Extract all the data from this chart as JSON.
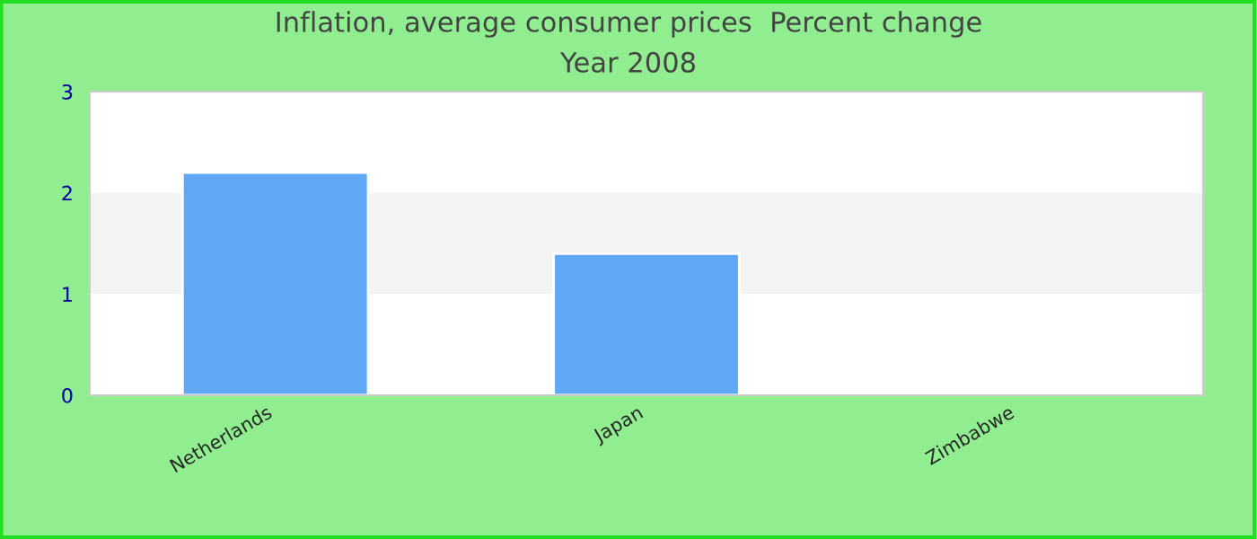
{
  "chart_data": {
    "type": "bar",
    "title": "Inflation, average consumer prices  Percent change",
    "subtitle": "Year 2008",
    "categories": [
      "Netherlands",
      "Japan",
      "Zimbabwe"
    ],
    "values": [
      2.2,
      1.4,
      null
    ],
    "color": "#60a8f5",
    "ylim": [
      0,
      3
    ],
    "yticks": [
      0,
      1,
      2,
      3
    ],
    "bands": [
      {
        "axis": "y",
        "from": 1,
        "to": 2,
        "color": "#f3f3f3"
      }
    ]
  }
}
